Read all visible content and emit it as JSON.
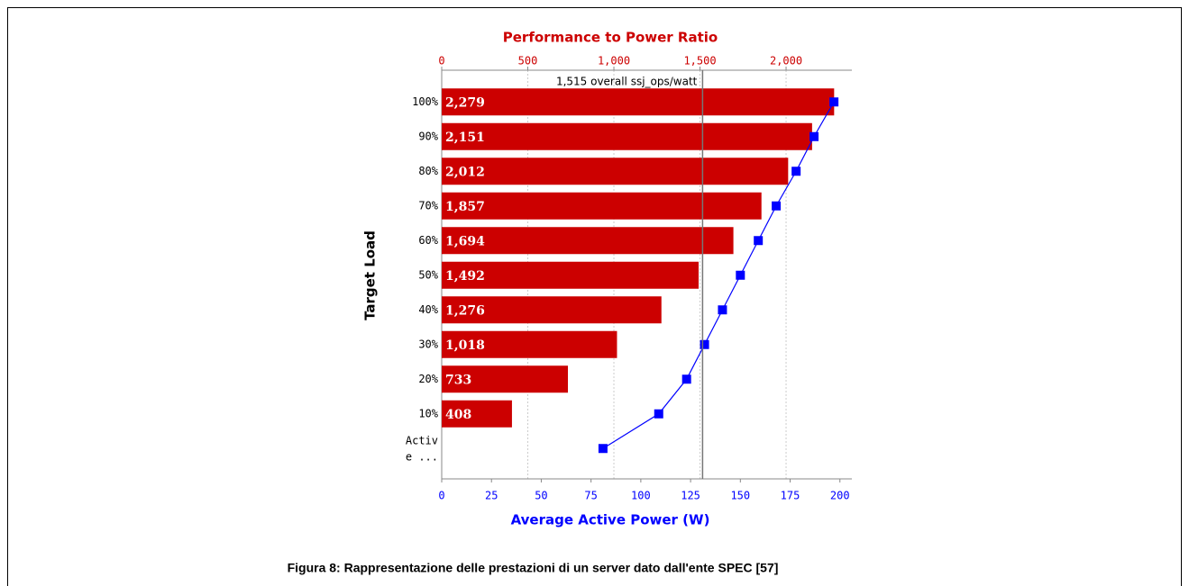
{
  "chart_data": {
    "type": "bar",
    "orientation": "horizontal",
    "x2label": "Performance to Power Ratio",
    "xlabel": "Average Active Power (W)",
    "ylabel": "Target Load",
    "categories": [
      "100%",
      "90%",
      "80%",
      "70%",
      "60%",
      "50%",
      "40%",
      "30%",
      "20%",
      "10%",
      "Activ\ne ..."
    ],
    "series": [
      {
        "color": "#cc0000",
        "axis": "x2",
        "values": [
          2279,
          2151,
          2012,
          1857,
          1694,
          1492,
          1276,
          1018,
          733,
          408,
          null
        ],
        "value_labels": [
          "2,279",
          "2,151",
          "2,012",
          "1,857",
          "1,694",
          "1,492",
          "1,276",
          "1,018",
          "733",
          "408",
          null
        ]
      },
      {
        "color": "#0000ff",
        "axis": "x",
        "values": [
          197,
          187,
          178,
          168,
          159,
          150,
          141,
          132,
          123,
          109,
          81
        ]
      }
    ],
    "xlim": [
      0,
      206
    ],
    "xticks": [
      0,
      25,
      50,
      75,
      100,
      125,
      150,
      175,
      200
    ],
    "x2lim": [
      0,
      2382
    ],
    "x2ticks": [
      0,
      500,
      {
        "value": 1000,
        "label": "1,000"
      },
      {
        "value": 1500,
        "label": "1,500"
      },
      {
        "value": 2000,
        "label": "2,000"
      }
    ],
    "reference_line": {
      "value": 1515,
      "label": "1,515 overall ssj_ops/watt"
    },
    "grid": true
  },
  "caption": "Figura 8: Rappresentazione delle prestazioni di un server dato dall'ente SPEC [57]"
}
